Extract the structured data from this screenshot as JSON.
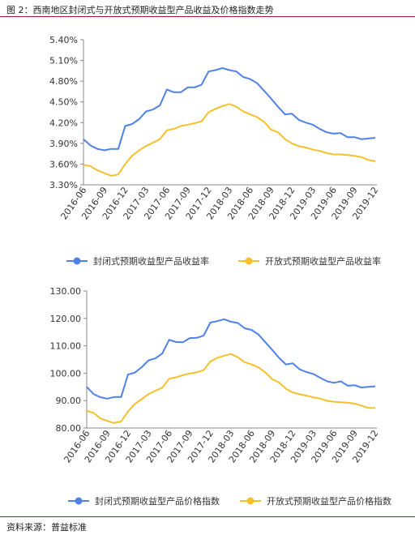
{
  "figure": {
    "title": "图 2：西南地区封闭式与开放式预期收益型产品收益及价格指数走势",
    "source": "资料来源：普益标准"
  },
  "colors": {
    "closed": "#4f81e8",
    "open": "#f5c02a",
    "rule": "#9e1b32"
  },
  "chart_data": [
    {
      "type": "line",
      "title": "",
      "xlabel": "",
      "ylabel": "",
      "ylim": [
        3.3,
        5.4
      ],
      "yticks": [
        "5.40%",
        "5.10%",
        "4.80%",
        "4.50%",
        "4.20%",
        "3.90%",
        "3.60%",
        "3.30%"
      ],
      "yticks_values": [
        5.4,
        5.1,
        4.8,
        4.5,
        4.2,
        3.9,
        3.6,
        3.3
      ],
      "xticks": [
        "2016-06",
        "2016-09",
        "2016-12",
        "2017-03",
        "2017-06",
        "2017-09",
        "2017-12",
        "2018-03",
        "2018-06",
        "2018-09",
        "2018-12",
        "2019-03",
        "2019-06",
        "2019-09",
        "2019-12"
      ],
      "grid": false,
      "legend_position": "bottom",
      "series": [
        {
          "name": "封闭式预期收益型产品收益率",
          "values": [
            3.96,
            3.87,
            3.82,
            3.8,
            3.82,
            3.82,
            4.15,
            4.18,
            4.25,
            4.36,
            4.39,
            4.45,
            4.68,
            4.64,
            4.64,
            4.71,
            4.71,
            4.75,
            4.94,
            4.96,
            4.99,
            4.96,
            4.94,
            4.86,
            4.83,
            4.77,
            4.66,
            4.55,
            4.43,
            4.32,
            4.33,
            4.24,
            4.2,
            4.17,
            4.11,
            4.06,
            4.04,
            4.05,
            3.99,
            3.99,
            3.96,
            3.97,
            3.98
          ]
        },
        {
          "name": "开放式预期收益型产品收益率",
          "values": [
            3.59,
            3.57,
            3.51,
            3.47,
            3.43,
            3.45,
            3.6,
            3.72,
            3.8,
            3.86,
            3.91,
            3.96,
            4.09,
            4.11,
            4.15,
            4.17,
            4.19,
            4.22,
            4.35,
            4.4,
            4.44,
            4.47,
            4.43,
            4.36,
            4.32,
            4.28,
            4.21,
            4.1,
            4.06,
            3.96,
            3.9,
            3.86,
            3.84,
            3.81,
            3.79,
            3.76,
            3.74,
            3.74,
            3.73,
            3.72,
            3.7,
            3.66,
            3.64
          ]
        }
      ]
    },
    {
      "type": "line",
      "title": "",
      "xlabel": "",
      "ylabel": "",
      "ylim": [
        80,
        130
      ],
      "yticks": [
        "130.00",
        "120.00",
        "110.00",
        "100.00",
        "90.00",
        "80.00"
      ],
      "yticks_values": [
        130,
        120,
        110,
        100,
        90,
        80
      ],
      "xticks": [
        "2016-06",
        "2016-09",
        "2016-12",
        "2017-03",
        "2017-06",
        "2017-09",
        "2017-12",
        "2018-03",
        "2018-06",
        "2018-09",
        "2018-12",
        "2019-03",
        "2019-06",
        "2019-09",
        "2019-12"
      ],
      "grid": false,
      "legend_position": "bottom",
      "series": [
        {
          "name": "封闭式预期收益型产品价格指数",
          "values": [
            95.0,
            92.4,
            91.2,
            90.7,
            91.3,
            91.3,
            99.5,
            100.2,
            102.2,
            104.7,
            105.4,
            107.2,
            112.2,
            111.4,
            111.3,
            112.8,
            112.9,
            113.7,
            118.5,
            119.0,
            119.7,
            118.8,
            118.3,
            116.4,
            115.8,
            114.1,
            111.3,
            108.5,
            105.6,
            103.2,
            103.6,
            101.4,
            100.4,
            99.7,
            98.3,
            97.0,
            96.5,
            97.0,
            95.4,
            95.6,
            94.8,
            95.0,
            95.2
          ]
        },
        {
          "name": "开放式预期收益型产品价格指数",
          "values": [
            86.3,
            85.5,
            83.5,
            82.6,
            81.8,
            82.4,
            86.0,
            88.8,
            90.5,
            92.4,
            93.6,
            94.7,
            98.0,
            98.5,
            99.3,
            99.9,
            100.3,
            101.1,
            104.3,
            105.6,
            106.4,
            107.0,
            105.8,
            104.0,
            103.2,
            102.1,
            100.3,
            97.8,
            96.6,
            94.3,
            93.0,
            92.3,
            91.8,
            91.2,
            90.7,
            89.9,
            89.6,
            89.4,
            89.2,
            88.9,
            88.2,
            87.3,
            87.3
          ]
        }
      ]
    }
  ]
}
